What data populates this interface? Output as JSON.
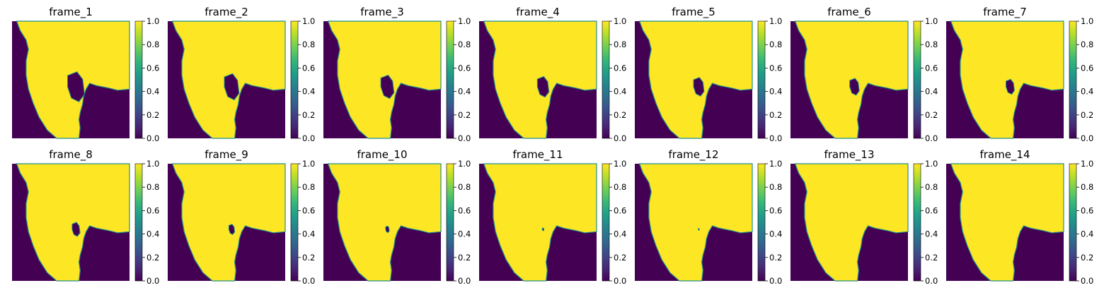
{
  "figure": {
    "colormap": "viridis",
    "colors": {
      "water": "#440154",
      "land": "#fde725",
      "edge": "#21918c"
    }
  },
  "chart_data": {
    "type": "heatmap",
    "layout": "2 rows x 7 columns",
    "xlabel": "",
    "ylabel": "",
    "grid": false,
    "axes_visible": false,
    "colorbar": {
      "colormap": "viridis",
      "range": [
        0.0,
        1.0
      ],
      "ticks": [
        "0.0",
        "0.2",
        "0.4",
        "0.6",
        "0.8",
        "1.0"
      ]
    },
    "panels": [
      {
        "title": "frame_1"
      },
      {
        "title": "frame_2"
      },
      {
        "title": "frame_3"
      },
      {
        "title": "frame_4"
      },
      {
        "title": "frame_5"
      },
      {
        "title": "frame_6"
      },
      {
        "title": "frame_7"
      },
      {
        "title": "frame_8"
      },
      {
        "title": "frame_9"
      },
      {
        "title": "frame_10"
      },
      {
        "title": "frame_11"
      },
      {
        "title": "frame_12"
      },
      {
        "title": "frame_13"
      },
      {
        "title": "frame_14"
      }
    ]
  }
}
